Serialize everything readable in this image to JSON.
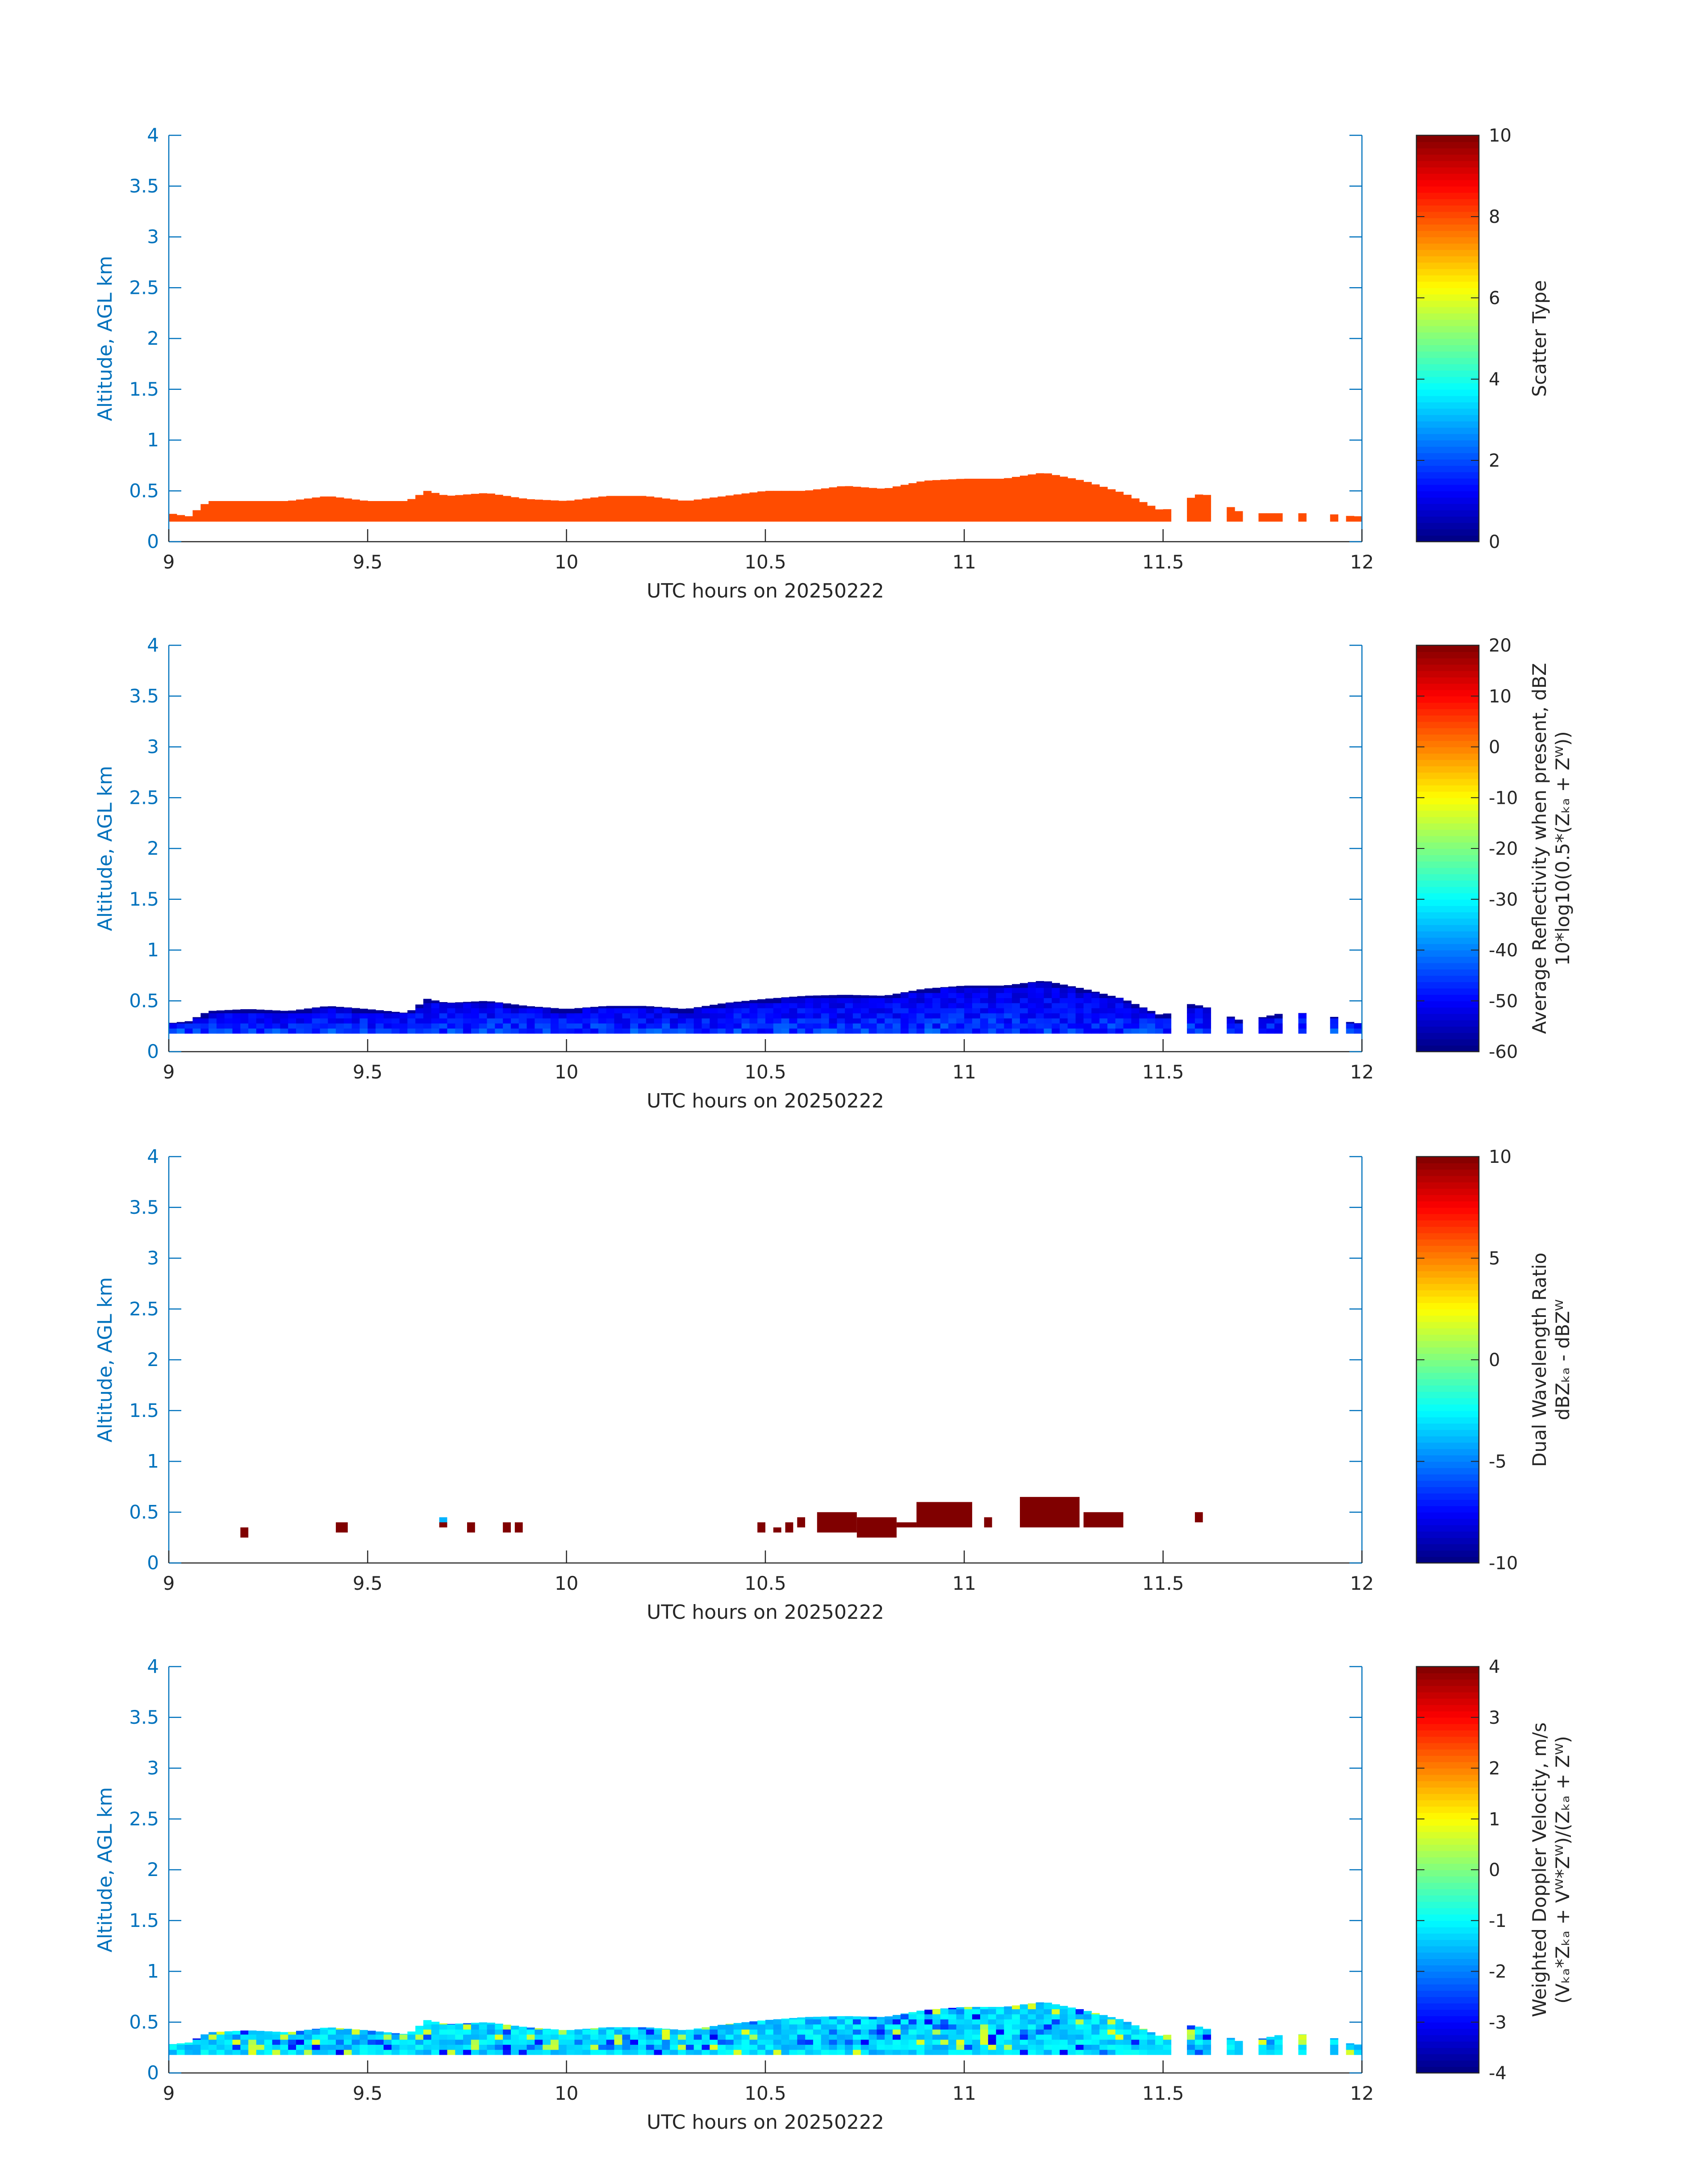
{
  "figure": {
    "colors": {
      "axis": "#0072BD",
      "text": "#262626",
      "background": "#ffffff"
    },
    "colormap": "jet",
    "time_range": [
      9,
      12
    ],
    "altitude_range": [
      0,
      4
    ]
  },
  "chart_data": [
    {
      "type": "heatmap",
      "xlabel": "UTC hours on 20250222",
      "ylabel": "Altitude, AGL km",
      "xlim": [
        9,
        12
      ],
      "ylim": [
        0,
        4
      ],
      "xticks": [
        9,
        9.5,
        10,
        10.5,
        11,
        11.5,
        12
      ],
      "yticks": [
        0,
        0.5,
        1,
        1.5,
        2,
        2.5,
        3,
        3.5,
        4
      ],
      "colorbar": {
        "label": [
          "Scatter Type"
        ],
        "clim": [
          0,
          10
        ],
        "ticks": [
          0,
          2,
          4,
          6,
          8,
          10
        ]
      },
      "field": "uniform",
      "fill_value": 8,
      "echo_top_km": [
        [
          9.0,
          0.28
        ],
        [
          9.05,
          0.25
        ],
        [
          9.1,
          0.4
        ],
        [
          9.2,
          0.4
        ],
        [
          9.3,
          0.4
        ],
        [
          9.4,
          0.45
        ],
        [
          9.5,
          0.4
        ],
        [
          9.6,
          0.4
        ],
        [
          9.65,
          0.5
        ],
        [
          9.7,
          0.45
        ],
        [
          9.8,
          0.48
        ],
        [
          9.9,
          0.42
        ],
        [
          10.0,
          0.4
        ],
        [
          10.1,
          0.45
        ],
        [
          10.2,
          0.45
        ],
        [
          10.3,
          0.4
        ],
        [
          10.4,
          0.45
        ],
        [
          10.5,
          0.5
        ],
        [
          10.6,
          0.5
        ],
        [
          10.7,
          0.55
        ],
        [
          10.8,
          0.52
        ],
        [
          10.9,
          0.6
        ],
        [
          11.0,
          0.62
        ],
        [
          11.1,
          0.62
        ],
        [
          11.2,
          0.68
        ],
        [
          11.3,
          0.6
        ],
        [
          11.4,
          0.48
        ],
        [
          11.5,
          0.3
        ],
        [
          11.55,
          0.4
        ],
        [
          11.6,
          0.48
        ],
        [
          11.7,
          0.28
        ],
        [
          11.8,
          0.28
        ],
        [
          11.9,
          0.28
        ],
        [
          11.98,
          0.25
        ]
      ],
      "echo_base_km": 0.2
    },
    {
      "type": "heatmap",
      "xlabel": "UTC hours on 20250222",
      "ylabel": "Altitude, AGL km",
      "xlim": [
        9,
        12
      ],
      "ylim": [
        0,
        4
      ],
      "xticks": [
        9,
        9.5,
        10,
        10.5,
        11,
        11.5,
        12
      ],
      "yticks": [
        0,
        0.5,
        1,
        1.5,
        2,
        2.5,
        3,
        3.5,
        4
      ],
      "colorbar": {
        "label": [
          "Average Reflectivity when present, dBZ",
          "10*log10(0.5*(Zₖₐ + Zᵂ))"
        ],
        "clim": [
          -60,
          20
        ],
        "ticks": [
          -60,
          -50,
          -40,
          -30,
          -20,
          -10,
          0,
          10,
          20
        ]
      },
      "field": "reflectivity",
      "value_range": [
        -58,
        -38
      ],
      "echo_top_km": [
        [
          9.0,
          0.28
        ],
        [
          9.05,
          0.3
        ],
        [
          9.1,
          0.4
        ],
        [
          9.2,
          0.42
        ],
        [
          9.3,
          0.4
        ],
        [
          9.4,
          0.45
        ],
        [
          9.5,
          0.42
        ],
        [
          9.6,
          0.38
        ],
        [
          9.65,
          0.52
        ],
        [
          9.7,
          0.48
        ],
        [
          9.8,
          0.5
        ],
        [
          9.9,
          0.45
        ],
        [
          10.0,
          0.42
        ],
        [
          10.1,
          0.45
        ],
        [
          10.2,
          0.45
        ],
        [
          10.3,
          0.42
        ],
        [
          10.4,
          0.48
        ],
        [
          10.5,
          0.52
        ],
        [
          10.6,
          0.55
        ],
        [
          10.7,
          0.56
        ],
        [
          10.8,
          0.55
        ],
        [
          10.9,
          0.62
        ],
        [
          11.0,
          0.65
        ],
        [
          11.1,
          0.65
        ],
        [
          11.2,
          0.7
        ],
        [
          11.3,
          0.62
        ],
        [
          11.4,
          0.52
        ],
        [
          11.5,
          0.35
        ],
        [
          11.55,
          0.48
        ],
        [
          11.6,
          0.45
        ],
        [
          11.7,
          0.3
        ],
        [
          11.8,
          0.38
        ],
        [
          11.9,
          0.38
        ],
        [
          11.98,
          0.28
        ]
      ],
      "echo_base_km": 0.18
    },
    {
      "type": "heatmap",
      "xlabel": "UTC hours on 20250222",
      "ylabel": "Altitude, AGL km",
      "xlim": [
        9,
        12
      ],
      "ylim": [
        0,
        4
      ],
      "xticks": [
        9,
        9.5,
        10,
        10.5,
        11,
        11.5,
        12
      ],
      "yticks": [
        0,
        0.5,
        1,
        1.5,
        2,
        2.5,
        3,
        3.5,
        4
      ],
      "colorbar": {
        "label": [
          "Dual Wavelength Ratio",
          "dBZₖₐ - dBZᵂ"
        ],
        "clim": [
          -10,
          10
        ],
        "ticks": [
          -10,
          -5,
          0,
          5,
          10
        ]
      },
      "field": "dwr",
      "patches": [
        {
          "t0": 9.18,
          "t1": 9.2,
          "z0": 0.25,
          "z1": 0.35,
          "value": 10
        },
        {
          "t0": 9.42,
          "t1": 9.45,
          "z0": 0.3,
          "z1": 0.4,
          "value": 10
        },
        {
          "t0": 9.68,
          "t1": 9.7,
          "z0": 0.4,
          "z1": 0.45,
          "value": -4
        },
        {
          "t0": 9.68,
          "t1": 9.7,
          "z0": 0.35,
          "z1": 0.4,
          "value": 10
        },
        {
          "t0": 9.75,
          "t1": 9.77,
          "z0": 0.3,
          "z1": 0.4,
          "value": 10
        },
        {
          "t0": 9.84,
          "t1": 9.86,
          "z0": 0.3,
          "z1": 0.4,
          "value": 10
        },
        {
          "t0": 9.87,
          "t1": 9.89,
          "z0": 0.3,
          "z1": 0.4,
          "value": 10
        },
        {
          "t0": 10.48,
          "t1": 10.5,
          "z0": 0.3,
          "z1": 0.4,
          "value": 10
        },
        {
          "t0": 10.52,
          "t1": 10.54,
          "z0": 0.3,
          "z1": 0.35,
          "value": 10
        },
        {
          "t0": 10.55,
          "t1": 10.57,
          "z0": 0.3,
          "z1": 0.4,
          "value": 10
        },
        {
          "t0": 10.58,
          "t1": 10.6,
          "z0": 0.35,
          "z1": 0.45,
          "value": 10
        },
        {
          "t0": 10.63,
          "t1": 10.73,
          "z0": 0.3,
          "z1": 0.5,
          "value": 10
        },
        {
          "t0": 10.73,
          "t1": 10.83,
          "z0": 0.25,
          "z1": 0.45,
          "value": 10
        },
        {
          "t0": 10.83,
          "t1": 10.88,
          "z0": 0.35,
          "z1": 0.4,
          "value": 10
        },
        {
          "t0": 10.88,
          "t1": 11.02,
          "z0": 0.35,
          "z1": 0.6,
          "value": 10
        },
        {
          "t0": 11.05,
          "t1": 11.07,
          "z0": 0.35,
          "z1": 0.45,
          "value": 10
        },
        {
          "t0": 11.14,
          "t1": 11.29,
          "z0": 0.35,
          "z1": 0.65,
          "value": 10
        },
        {
          "t0": 11.3,
          "t1": 11.4,
          "z0": 0.35,
          "z1": 0.5,
          "value": 10
        },
        {
          "t0": 11.58,
          "t1": 11.6,
          "z0": 0.4,
          "z1": 0.5,
          "value": 10
        }
      ]
    },
    {
      "type": "heatmap",
      "xlabel": "UTC hours on 20250222",
      "ylabel": "Altitude, AGL km",
      "xlim": [
        9,
        12
      ],
      "ylim": [
        0,
        4
      ],
      "xticks": [
        9,
        9.5,
        10,
        10.5,
        11,
        11.5,
        12
      ],
      "yticks": [
        0,
        0.5,
        1,
        1.5,
        2,
        2.5,
        3,
        3.5,
        4
      ],
      "colorbar": {
        "label": [
          "Weighted Doppler Velocity, m/s",
          "(Vₖₐ*Zₖₐ + Vᵂ*Zᵂ)/(Zₖₐ + Zᵂ)"
        ],
        "clim": [
          -4,
          4
        ],
        "ticks": [
          -4,
          -3,
          -2,
          -1,
          0,
          1,
          2,
          3,
          4
        ]
      },
      "field": "velocity",
      "value_range": [
        -3.2,
        0.8
      ],
      "echo_top_km": [
        [
          9.0,
          0.28
        ],
        [
          9.05,
          0.3
        ],
        [
          9.1,
          0.4
        ],
        [
          9.2,
          0.42
        ],
        [
          9.3,
          0.4
        ],
        [
          9.4,
          0.45
        ],
        [
          9.5,
          0.42
        ],
        [
          9.6,
          0.38
        ],
        [
          9.65,
          0.52
        ],
        [
          9.7,
          0.48
        ],
        [
          9.8,
          0.5
        ],
        [
          9.9,
          0.45
        ],
        [
          10.0,
          0.42
        ],
        [
          10.1,
          0.45
        ],
        [
          10.2,
          0.45
        ],
        [
          10.3,
          0.42
        ],
        [
          10.4,
          0.48
        ],
        [
          10.5,
          0.52
        ],
        [
          10.6,
          0.55
        ],
        [
          10.7,
          0.56
        ],
        [
          10.8,
          0.55
        ],
        [
          10.9,
          0.62
        ],
        [
          11.0,
          0.65
        ],
        [
          11.1,
          0.65
        ],
        [
          11.2,
          0.7
        ],
        [
          11.3,
          0.62
        ],
        [
          11.4,
          0.52
        ],
        [
          11.5,
          0.35
        ],
        [
          11.55,
          0.48
        ],
        [
          11.6,
          0.45
        ],
        [
          11.7,
          0.3
        ],
        [
          11.8,
          0.38
        ],
        [
          11.9,
          0.38
        ],
        [
          11.98,
          0.28
        ]
      ],
      "echo_base_km": 0.18
    }
  ]
}
